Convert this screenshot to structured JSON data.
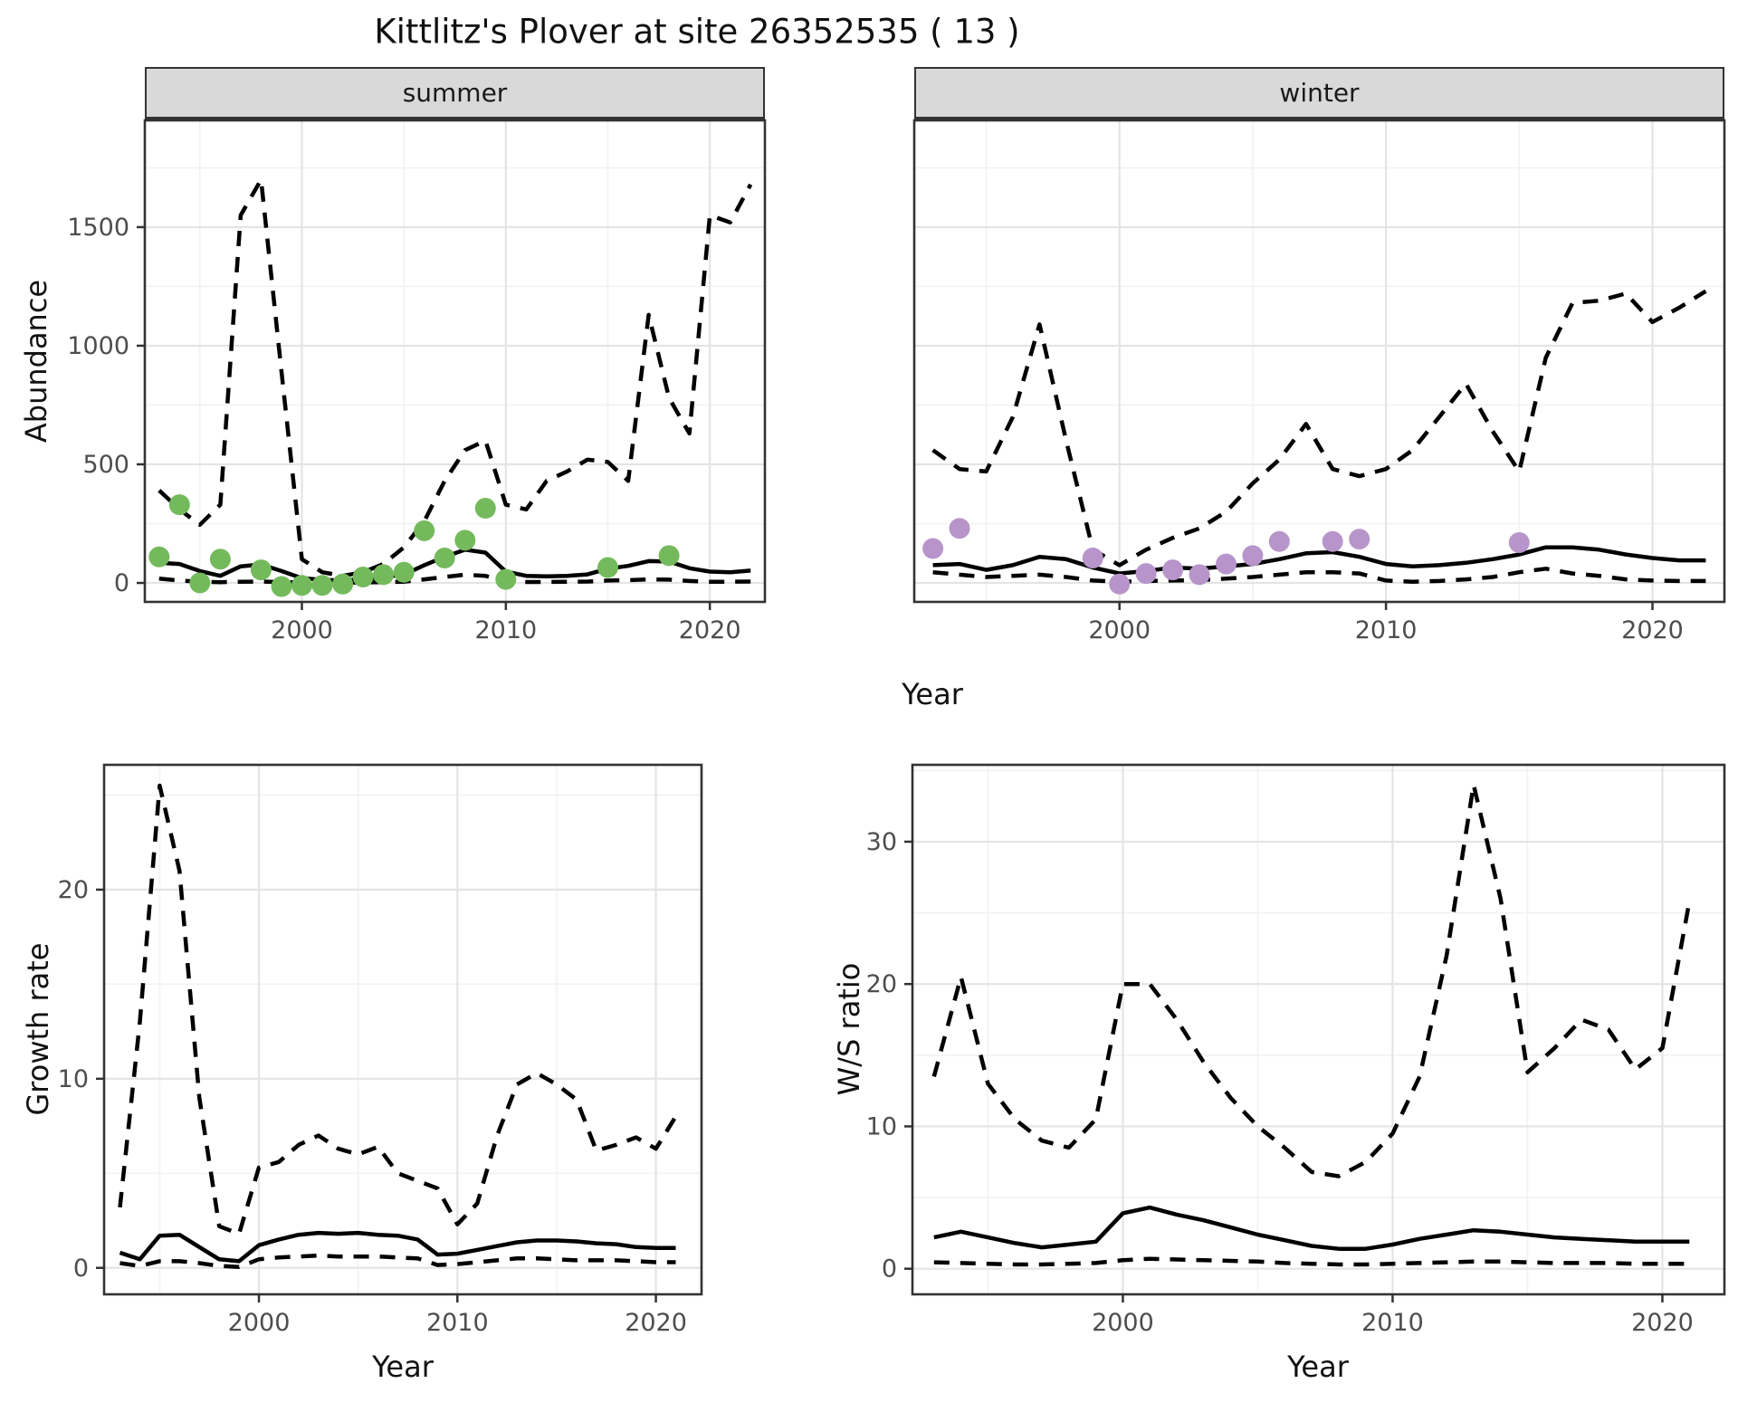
{
  "title": "Kittlitz's Plover at site 26352535 ( 13 )",
  "facets": {
    "summer": "summer",
    "winter": "winter"
  },
  "axes": {
    "abundance": "Abundance",
    "year": "Year",
    "growth_rate": "Growth rate",
    "ws_ratio": "W/S ratio"
  },
  "style": {
    "strip_bg": "#d9d9d9",
    "strip_border": "#333333",
    "panel_border": "#333333",
    "grid_major": "#e4e4e4",
    "grid_minor": "#f2f2f2",
    "tick_color": "#333333",
    "tick_text": "#4d4d4d",
    "line_color": "#000000",
    "summer_point": "#74ba5c",
    "winter_point": "#b795ca"
  },
  "chart_data": [
    {
      "id": "abundance-summer",
      "type": "line",
      "facet": "summer",
      "xlabel": "Year",
      "ylabel": "Abundance",
      "x_range": [
        1992.3,
        2022.7
      ],
      "y_range": [
        -80,
        1950
      ],
      "x_ticks": [
        2000,
        2010,
        2020
      ],
      "x_minor": [
        1995,
        2005,
        2015
      ],
      "y_ticks": [
        0,
        500,
        1000,
        1500
      ],
      "y_minor": [
        250,
        750,
        1250,
        1750
      ],
      "show_y_tick_labels": true,
      "years": [
        1993,
        1994,
        1995,
        1996,
        1997,
        1998,
        1999,
        2000,
        2001,
        2002,
        2003,
        2004,
        2005,
        2006,
        2007,
        2008,
        2009,
        2010,
        2011,
        2012,
        2013,
        2014,
        2015,
        2016,
        2017,
        2018,
        2019,
        2020,
        2021,
        2022
      ],
      "series": [
        {
          "name": "upper-ci",
          "line": "dashed",
          "values": [
            390,
            310,
            245,
            330,
            1550,
            1700,
            890,
            100,
            45,
            30,
            45,
            80,
            150,
            260,
            430,
            560,
            600,
            330,
            310,
            430,
            470,
            520,
            510,
            430,
            1130,
            780,
            630,
            1550,
            1520,
            1680
          ]
        },
        {
          "name": "estimate",
          "line": "solid",
          "values": [
            85,
            80,
            50,
            30,
            70,
            78,
            50,
            20,
            13,
            10,
            17,
            25,
            35,
            75,
            110,
            140,
            128,
            48,
            30,
            28,
            30,
            36,
            60,
            72,
            92,
            90,
            62,
            48,
            45,
            52
          ]
        },
        {
          "name": "lower-ci",
          "line": "dashed",
          "values": [
            18,
            10,
            5,
            3,
            5,
            6,
            4,
            2,
            1,
            1,
            2,
            3,
            5,
            15,
            25,
            35,
            30,
            6,
            4,
            4,
            5,
            6,
            10,
            12,
            15,
            14,
            8,
            5,
            5,
            6
          ]
        }
      ],
      "points": {
        "name": "observed-summer",
        "color": "#74ba5c",
        "x": [
          1993,
          1994,
          1995,
          1996,
          1998,
          1999,
          2000,
          2001,
          2002,
          2003,
          2004,
          2005,
          2006,
          2007,
          2008,
          2009,
          2010,
          2015,
          2018
        ],
        "y": [
          110,
          330,
          0,
          100,
          55,
          -15,
          -10,
          -10,
          -5,
          25,
          35,
          45,
          220,
          105,
          180,
          315,
          15,
          65,
          115
        ]
      }
    },
    {
      "id": "abundance-winter",
      "type": "line",
      "facet": "winter",
      "xlabel": "Year",
      "ylabel": "Abundance",
      "x_range": [
        1992.3,
        2022.7
      ],
      "y_range": [
        -80,
        1950
      ],
      "x_ticks": [
        2000,
        2010,
        2020
      ],
      "x_minor": [
        1995,
        2005,
        2015
      ],
      "y_ticks": [
        0,
        500,
        1000,
        1500
      ],
      "y_minor": [
        250,
        750,
        1250,
        1750
      ],
      "show_y_tick_labels": false,
      "years": [
        1993,
        1994,
        1995,
        1996,
        1997,
        1998,
        1999,
        2000,
        2001,
        2002,
        2003,
        2004,
        2005,
        2006,
        2007,
        2008,
        2009,
        2010,
        2011,
        2012,
        2013,
        2014,
        2015,
        2016,
        2017,
        2018,
        2019,
        2020,
        2021,
        2022
      ],
      "series": [
        {
          "name": "upper-ci",
          "line": "dashed",
          "values": [
            560,
            480,
            470,
            700,
            1090,
            600,
            140,
            75,
            140,
            190,
            230,
            300,
            420,
            520,
            670,
            480,
            450,
            480,
            560,
            700,
            840,
            640,
            470,
            950,
            1180,
            1190,
            1220,
            1100,
            1160,
            1230
          ]
        },
        {
          "name": "estimate",
          "line": "solid",
          "values": [
            75,
            80,
            55,
            75,
            110,
            100,
            65,
            40,
            50,
            65,
            60,
            70,
            80,
            100,
            125,
            130,
            110,
            80,
            70,
            75,
            85,
            100,
            120,
            150,
            150,
            140,
            120,
            105,
            95,
            95
          ]
        },
        {
          "name": "lower-ci",
          "line": "dashed",
          "values": [
            45,
            35,
            25,
            30,
            35,
            25,
            10,
            5,
            8,
            10,
            12,
            18,
            25,
            35,
            45,
            45,
            40,
            10,
            5,
            8,
            15,
            25,
            45,
            60,
            40,
            30,
            15,
            10,
            8,
            8
          ]
        }
      ],
      "points": {
        "name": "observed-winter",
        "color": "#b795ca",
        "x": [
          1993,
          1994,
          1999,
          2000,
          2001,
          2002,
          2003,
          2004,
          2005,
          2006,
          2008,
          2009,
          2015
        ],
        "y": [
          145,
          230,
          105,
          -5,
          40,
          55,
          35,
          80,
          115,
          175,
          175,
          185,
          170
        ]
      }
    },
    {
      "id": "growth-rate",
      "type": "line",
      "facet": null,
      "xlabel": "Year",
      "ylabel": "Growth rate",
      "x_range": [
        1992.2,
        2022.3
      ],
      "y_range": [
        -1.4,
        26.6
      ],
      "x_ticks": [
        2000,
        2010,
        2020
      ],
      "x_minor": [
        1995,
        2005,
        2015
      ],
      "y_ticks": [
        0,
        10,
        20
      ],
      "y_minor": [
        5,
        15,
        25
      ],
      "show_y_tick_labels": true,
      "years": [
        1993,
        1994,
        1995,
        1996,
        1997,
        1998,
        1999,
        2000,
        2001,
        2002,
        2003,
        2004,
        2005,
        2006,
        2007,
        2008,
        2009,
        2010,
        2011,
        2012,
        2013,
        2014,
        2015,
        2016,
        2017,
        2018,
        2019,
        2020,
        2021
      ],
      "series": [
        {
          "name": "upper-ci",
          "line": "dashed",
          "values": [
            3.2,
            13,
            25.5,
            21,
            9,
            2.2,
            1.8,
            5.3,
            5.6,
            6.5,
            7,
            6.3,
            6,
            6.4,
            5,
            4.6,
            4.2,
            2.3,
            3.4,
            7,
            9.7,
            10.3,
            9.7,
            8.9,
            6.2,
            6.5,
            6.9,
            6.3,
            8
          ]
        },
        {
          "name": "estimate",
          "line": "solid",
          "values": [
            0.8,
            0.45,
            1.7,
            1.75,
            1.1,
            0.45,
            0.35,
            1.2,
            1.5,
            1.75,
            1.85,
            1.8,
            1.85,
            1.75,
            1.7,
            1.5,
            0.7,
            0.75,
            0.95,
            1.15,
            1.35,
            1.45,
            1.45,
            1.4,
            1.3,
            1.25,
            1.1,
            1.05,
            1.05
          ]
        },
        {
          "name": "lower-ci",
          "line": "dashed",
          "values": [
            0.25,
            0.1,
            0.35,
            0.35,
            0.25,
            0.1,
            0.05,
            0.45,
            0.55,
            0.6,
            0.65,
            0.6,
            0.6,
            0.6,
            0.55,
            0.5,
            0.15,
            0.2,
            0.3,
            0.4,
            0.5,
            0.5,
            0.45,
            0.4,
            0.4,
            0.4,
            0.35,
            0.3,
            0.3
          ]
        }
      ],
      "points": null
    },
    {
      "id": "ws-ratio",
      "type": "line",
      "facet": null,
      "xlabel": "Year",
      "ylabel": "W/S ratio",
      "x_range": [
        1992.2,
        2022.3
      ],
      "y_range": [
        -1.8,
        35.4
      ],
      "x_ticks": [
        2000,
        2010,
        2020
      ],
      "x_minor": [
        1995,
        2005,
        2015
      ],
      "y_ticks": [
        0,
        10,
        20,
        30
      ],
      "y_minor": [
        5,
        15,
        25,
        35
      ],
      "show_y_tick_labels": true,
      "years": [
        1993,
        1994,
        1995,
        1996,
        1997,
        1998,
        1999,
        2000,
        2001,
        2002,
        2003,
        2004,
        2005,
        2006,
        2007,
        2008,
        2009,
        2010,
        2011,
        2012,
        2013,
        2014,
        2015,
        2016,
        2017,
        2018,
        2019,
        2020,
        2021
      ],
      "series": [
        {
          "name": "upper-ci",
          "line": "dashed",
          "values": [
            13.5,
            20.5,
            13,
            10.5,
            9,
            8.5,
            10.5,
            20,
            20,
            17.5,
            14.5,
            12,
            10,
            8.5,
            6.8,
            6.5,
            7.5,
            9.5,
            13.5,
            22,
            34,
            26,
            13.8,
            15.5,
            17.5,
            16.8,
            14,
            15.5,
            25.8
          ]
        },
        {
          "name": "estimate",
          "line": "solid",
          "values": [
            2.2,
            2.6,
            2.2,
            1.8,
            1.5,
            1.7,
            1.9,
            3.9,
            4.3,
            3.8,
            3.4,
            2.9,
            2.4,
            2,
            1.6,
            1.4,
            1.4,
            1.7,
            2.1,
            2.4,
            2.7,
            2.6,
            2.4,
            2.2,
            2.1,
            2,
            1.9,
            1.9,
            1.9
          ]
        },
        {
          "name": "lower-ci",
          "line": "dashed",
          "values": [
            0.45,
            0.4,
            0.35,
            0.3,
            0.3,
            0.35,
            0.4,
            0.6,
            0.7,
            0.65,
            0.6,
            0.55,
            0.5,
            0.4,
            0.35,
            0.3,
            0.3,
            0.35,
            0.4,
            0.45,
            0.5,
            0.5,
            0.45,
            0.4,
            0.4,
            0.4,
            0.35,
            0.35,
            0.35
          ]
        }
      ],
      "points": null
    }
  ]
}
